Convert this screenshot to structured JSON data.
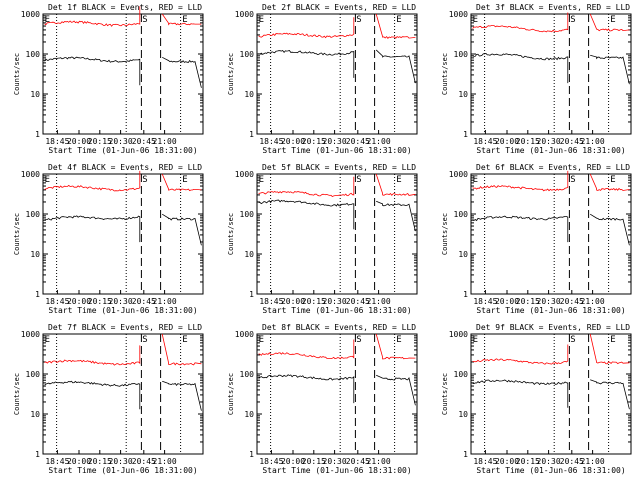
{
  "figure": {
    "yaxis_label": "Counts/sec",
    "xaxis_label": "Start Time (01-Jun-06 18:31:00)",
    "x_tick_labels": [
      "18:45",
      "20:00",
      "20:15",
      "20:30",
      "20:45",
      "21:00"
    ],
    "y_tick_labels": [
      "1",
      "10",
      "100",
      "1000"
    ],
    "marker_labels": [
      "E",
      "S",
      "E"
    ],
    "series_colors": {
      "events": "#000000",
      "lld": "#ff0000"
    }
  },
  "chart_data": [
    {
      "type": "line",
      "title": "Det 1f BLACK = Events, RED = LLD",
      "yscale": "log",
      "ylim": [
        1,
        1000
      ],
      "series": [
        {
          "name": "Events",
          "level": [
            70,
            60,
            75,
            65
          ]
        },
        {
          "name": "LLD",
          "level": [
            560,
            520,
            600,
            560
          ]
        }
      ]
    },
    {
      "type": "line",
      "title": "Det 2f BLACK = Events, RED = LLD",
      "yscale": "log",
      "ylim": [
        1,
        1000
      ],
      "series": [
        {
          "name": "Events",
          "level": [
            100,
            95,
            115,
            85
          ]
        },
        {
          "name": "LLD",
          "level": [
            270,
            230,
            320,
            260
          ]
        }
      ]
    },
    {
      "type": "line",
      "title": "Det 3f BLACK = Events, RED = LLD",
      "yscale": "log",
      "ylim": [
        1,
        1000
      ],
      "series": [
        {
          "name": "Events",
          "level": [
            90,
            80,
            85,
            80
          ]
        },
        {
          "name": "LLD",
          "level": [
            450,
            380,
            420,
            400
          ]
        }
      ]
    },
    {
      "type": "line",
      "title": "Det 4f BLACK = Events, RED = LLD",
      "yscale": "log",
      "ylim": [
        1,
        1000
      ],
      "series": [
        {
          "name": "Events",
          "level": [
            70,
            65,
            90,
            75
          ]
        },
        {
          "name": "LLD",
          "level": [
            430,
            380,
            460,
            400
          ]
        }
      ]
    },
    {
      "type": "line",
      "title": "Det 5f BLACK = Events, RED = LLD",
      "yscale": "log",
      "ylim": [
        1,
        1000
      ],
      "series": [
        {
          "name": "Events",
          "level": [
            190,
            170,
            190,
            170
          ]
        },
        {
          "name": "LLD",
          "level": [
            320,
            300,
            330,
            310
          ]
        }
      ]
    },
    {
      "type": "line",
      "title": "Det 6f BLACK = Events, RED = LLD",
      "yscale": "log",
      "ylim": [
        1,
        1000
      ],
      "series": [
        {
          "name": "Events",
          "level": [
            70,
            65,
            90,
            75
          ]
        },
        {
          "name": "LLD",
          "level": [
            430,
            390,
            460,
            410
          ]
        }
      ]
    },
    {
      "type": "line",
      "title": "Det 7f BLACK = Events, RED = LLD",
      "yscale": "log",
      "ylim": [
        1,
        1000
      ],
      "series": [
        {
          "name": "Events",
          "level": [
            55,
            45,
            60,
            55
          ]
        },
        {
          "name": "LLD",
          "level": [
            190,
            150,
            200,
            180
          ]
        }
      ]
    },
    {
      "type": "line",
      "title": "Det 8f BLACK = Events, RED = LLD",
      "yscale": "log",
      "ylim": [
        1,
        1000
      ],
      "series": [
        {
          "name": "Events",
          "level": [
            80,
            70,
            85,
            75
          ]
        },
        {
          "name": "LLD",
          "level": [
            300,
            250,
            280,
            250
          ]
        }
      ]
    },
    {
      "type": "line",
      "title": "Det 9f BLACK = Events, RED = LLD",
      "yscale": "log",
      "ylim": [
        1,
        1000
      ],
      "series": [
        {
          "name": "Events",
          "level": [
            60,
            55,
            65,
            60
          ]
        },
        {
          "name": "LLD",
          "level": [
            200,
            180,
            210,
            190
          ]
        }
      ]
    }
  ]
}
